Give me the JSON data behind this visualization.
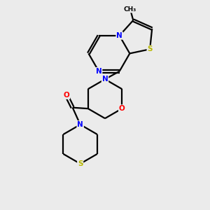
{
  "bg_color": "#ebebeb",
  "bond_color": "#000000",
  "N_color": "#0000ff",
  "O_color": "#ff0000",
  "S_color": "#b8b800",
  "line_width": 1.6,
  "dbo": 0.055,
  "figsize": [
    3.0,
    3.0
  ],
  "dpi": 100,
  "xlim": [
    0,
    10
  ],
  "ylim": [
    0,
    10
  ],
  "font_size": 7.5,
  "methyl_font_size": 6.5
}
